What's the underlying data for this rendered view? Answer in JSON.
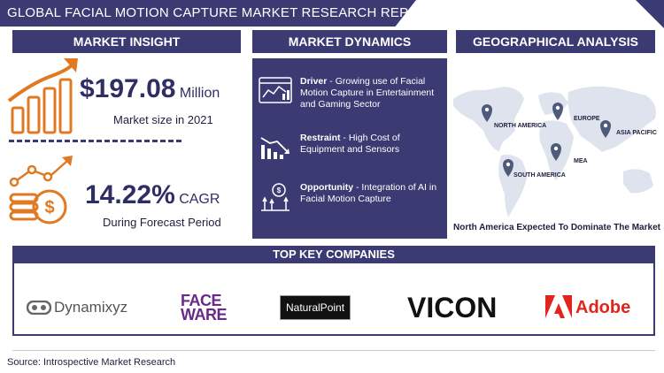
{
  "header": {
    "title": "GLOBAL FACIAL MOTION CAPTURE MARKET RESEARCH REPORT"
  },
  "sections": {
    "insight": "MARKET INSIGHT",
    "dynamics": "MARKET DYNAMICS",
    "geography": "GEOGRAPHICAL ANALYSIS",
    "companies": "TOP KEY COMPANIES"
  },
  "insight": {
    "market_size_value": "$197.08",
    "market_size_unit": "Million",
    "market_size_caption": "Market size in 2021",
    "cagr_value": "14.22%",
    "cagr_unit": "CAGR",
    "cagr_caption": "During Forecast Period"
  },
  "dynamics": {
    "driver_label": "Driver",
    "driver_text": " - Growing use of Facial Motion Capture in Entertainment and Gaming Sector",
    "restraint_label": "Restraint",
    "restraint_text": " - High Cost of Equipment and Sensors",
    "opportunity_label": "Opportunity",
    "opportunity_text": " - Integration of AI in Facial Motion Capture"
  },
  "geography": {
    "regions": [
      "NORTH AMERICA",
      "EUROPE",
      "ASIA PACIFIC",
      "MEA",
      "SOUTH AMERICA"
    ],
    "caption": "North America Expected To Dominate The Market"
  },
  "companies": {
    "dynamixyz": "Dynamixyz",
    "faceware_line1": "FACE",
    "faceware_line2": "WARE",
    "naturalpoint": "NaturalPoint",
    "vicon": "VICON",
    "adobe": "Adobe"
  },
  "footer": {
    "source": "Source: Introspective Market Research"
  },
  "colors": {
    "primary": "#3b3a73",
    "accent": "#e07a22",
    "faceware": "#6a2a8a",
    "adobe": "#e1251b",
    "pin": "#4d5a7a"
  }
}
